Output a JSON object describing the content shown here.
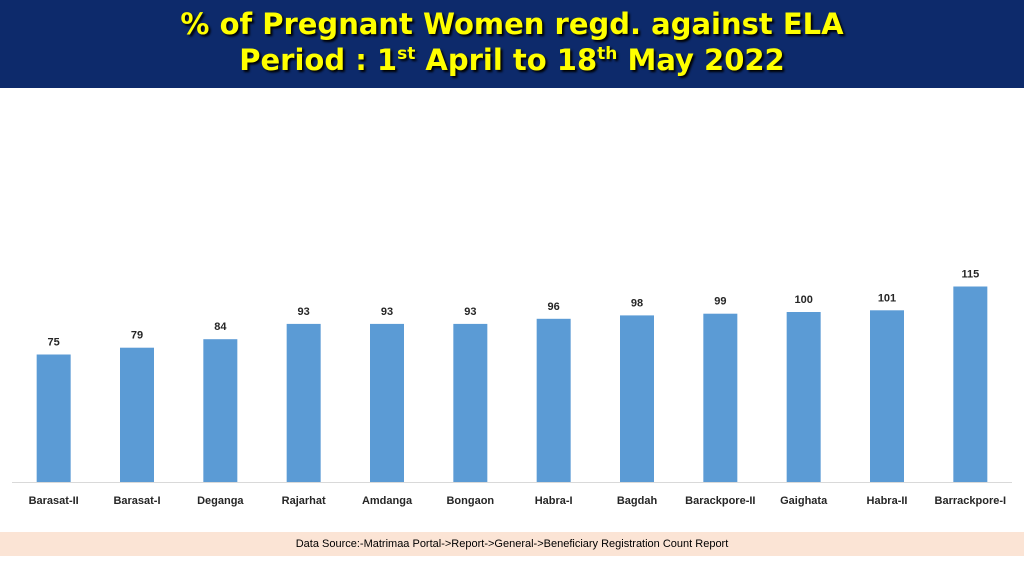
{
  "header": {
    "line1": "% of Pregnant Women regd. against ELA",
    "line2_prefix": "Period : 1",
    "line2_sup1": "st",
    "line2_mid": " April to 18",
    "line2_sup2": "th",
    "line2_suffix": " May 2022"
  },
  "chart_data": {
    "type": "bar",
    "title": "",
    "xlabel": "",
    "ylabel": "",
    "categories": [
      "Barasat-II",
      "Barasat-I",
      "Deganga",
      "Rajarhat",
      "Amdanga",
      "Bongaon",
      "Habra-I",
      "Bagdah",
      "Barackpore-II",
      "Gaighata",
      "Habra-II",
      "Barrackpore-I"
    ],
    "values": [
      75,
      79,
      84,
      93,
      93,
      93,
      96,
      98,
      99,
      100,
      101,
      115
    ],
    "ylim": [
      0,
      120
    ],
    "grid": false,
    "legend": "none",
    "bar_color": "#5b9bd5"
  },
  "footer": {
    "source": "Data Source:-Matrimaa Portal->Report->General->Beneficiary Registration Count Report"
  }
}
